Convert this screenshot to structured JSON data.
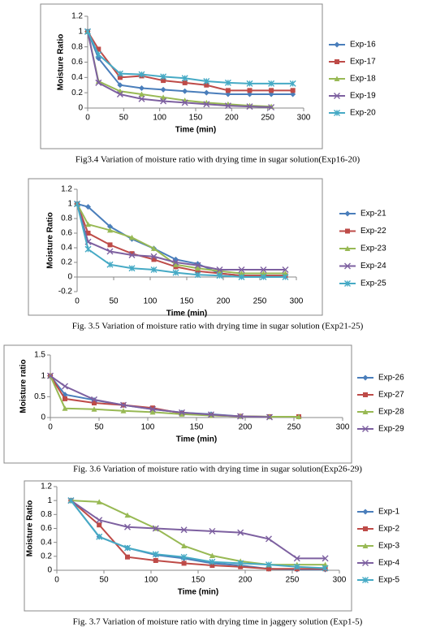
{
  "chart_data": [
    {
      "type": "line",
      "caption": "Fig3.4 Variation of moisture ratio with drying time in sugar solution(Exp16-20)",
      "x_label": "Time (min)",
      "y_label": "Moisture Ratio",
      "xlim": [
        0,
        300
      ],
      "xticks": [
        0,
        50,
        100,
        150,
        200,
        250,
        300
      ],
      "ylim": [
        0,
        1.2
      ],
      "yticks": [
        0,
        0.2,
        0.4,
        0.6,
        0.8,
        1,
        1.2
      ],
      "legend": "right",
      "series": [
        {
          "name": "Exp-16",
          "color": "#4a7ebb",
          "marker": "diamond",
          "x": [
            0,
            15,
            45,
            75,
            105,
            135,
            165,
            195,
            225,
            255,
            285
          ],
          "values": [
            1,
            0.65,
            0.3,
            0.26,
            0.24,
            0.22,
            0.2,
            0.18,
            0.18,
            0.18,
            0.18
          ]
        },
        {
          "name": "Exp-17",
          "color": "#be4b48",
          "marker": "square",
          "x": [
            0,
            15,
            45,
            75,
            105,
            135,
            165,
            195,
            225,
            255,
            285
          ],
          "values": [
            1,
            0.77,
            0.4,
            0.42,
            0.36,
            0.33,
            0.3,
            0.23,
            0.23,
            0.23,
            0.23
          ]
        },
        {
          "name": "Exp-18",
          "color": "#98b954",
          "marker": "triangle",
          "x": [
            0,
            15,
            45,
            75,
            105,
            135,
            165,
            195,
            225,
            255
          ],
          "values": [
            1,
            0.35,
            0.22,
            0.18,
            0.14,
            0.1,
            0.07,
            0.05,
            0.03,
            0.02
          ]
        },
        {
          "name": "Exp-19",
          "color": "#7d60a0",
          "marker": "x",
          "x": [
            0,
            15,
            45,
            75,
            105,
            135,
            165,
            195,
            225,
            255
          ],
          "values": [
            1,
            0.33,
            0.18,
            0.12,
            0.09,
            0.07,
            0.05,
            0.03,
            0.02,
            0.01
          ]
        },
        {
          "name": "Exp-20",
          "color": "#46aac5",
          "marker": "star",
          "x": [
            0,
            15,
            45,
            75,
            105,
            135,
            165,
            195,
            225,
            255,
            285
          ],
          "values": [
            1,
            0.7,
            0.45,
            0.44,
            0.41,
            0.39,
            0.35,
            0.33,
            0.32,
            0.32,
            0.32
          ]
        }
      ]
    },
    {
      "type": "line",
      "caption": "Fig. 3.5 Variation of moisture ratio with drying time in sugar solution (Exp21-25)",
      "x_label": "Time (min)",
      "y_label": "Moisture Ratio",
      "xlim": [
        0,
        300
      ],
      "xticks": [
        0,
        50,
        100,
        150,
        200,
        250,
        300
      ],
      "ylim": [
        -0.2,
        1.2
      ],
      "yticks": [
        -0.2,
        0,
        0.2,
        0.4,
        0.6,
        0.8,
        1,
        1.2
      ],
      "legend": "right",
      "series": [
        {
          "name": "Exp-21",
          "color": "#4a7ebb",
          "marker": "diamond",
          "x": [
            0,
            15,
            45,
            75,
            105,
            135,
            165,
            195,
            225,
            255,
            285
          ],
          "values": [
            1,
            0.96,
            0.69,
            0.52,
            0.39,
            0.24,
            0.18,
            0.05,
            0.02,
            0.02,
            0.02
          ]
        },
        {
          "name": "Exp-22",
          "color": "#be4b48",
          "marker": "square",
          "x": [
            0,
            15,
            45,
            75,
            105,
            135,
            165,
            195,
            225,
            255,
            285
          ],
          "values": [
            1,
            0.6,
            0.44,
            0.32,
            0.24,
            0.14,
            0.08,
            0.05,
            0.02,
            0.02,
            0.02
          ]
        },
        {
          "name": "Exp-23",
          "color": "#98b954",
          "marker": "triangle",
          "x": [
            0,
            15,
            45,
            75,
            105,
            135,
            165,
            195,
            225,
            255,
            285
          ],
          "values": [
            1,
            0.72,
            0.64,
            0.54,
            0.39,
            0.17,
            0.12,
            0.08,
            0.05,
            0.05,
            0.05
          ]
        },
        {
          "name": "Exp-24",
          "color": "#7d60a0",
          "marker": "x",
          "x": [
            0,
            15,
            45,
            75,
            105,
            135,
            165,
            195,
            225,
            255,
            285
          ],
          "values": [
            1,
            0.48,
            0.35,
            0.3,
            0.28,
            0.2,
            0.16,
            0.1,
            0.1,
            0.1,
            0.1
          ]
        },
        {
          "name": "Exp-25",
          "color": "#46aac5",
          "marker": "star",
          "x": [
            0,
            15,
            45,
            75,
            105,
            135,
            165,
            195,
            225,
            255,
            285
          ],
          "values": [
            1,
            0.38,
            0.17,
            0.12,
            0.1,
            0.06,
            0.03,
            0.02,
            0,
            0,
            0
          ]
        }
      ]
    },
    {
      "type": "line",
      "caption": "Fig. 3.6 Variation of moisture ratio with drying time in sugar solution(Exp26-29)",
      "x_label": "Time (min)",
      "y_label": "Moisture ratio",
      "xlim": [
        0,
        300
      ],
      "xticks": [
        0,
        50,
        100,
        150,
        200,
        250,
        300
      ],
      "ylim": [
        0,
        1.5
      ],
      "yticks": [
        0,
        0.5,
        1,
        1.5
      ],
      "legend": "right",
      "series": [
        {
          "name": "Exp-26",
          "color": "#4a7ebb",
          "marker": "diamond",
          "x": [
            0,
            15,
            45,
            75,
            105,
            135,
            165,
            195,
            225,
            255
          ],
          "values": [
            1,
            0.55,
            0.42,
            0.3,
            0.2,
            0.12,
            0.08,
            0.03,
            0.02,
            0.02
          ]
        },
        {
          "name": "Exp-27",
          "color": "#be4b48",
          "marker": "square",
          "x": [
            0,
            15,
            45,
            75,
            105,
            135,
            165,
            195,
            225,
            255
          ],
          "values": [
            1,
            0.45,
            0.35,
            0.3,
            0.23,
            0.1,
            0.05,
            0.03,
            0.02,
            0.02
          ]
        },
        {
          "name": "Exp-28",
          "color": "#98b954",
          "marker": "triangle",
          "x": [
            0,
            15,
            45,
            75,
            105,
            135,
            165,
            195,
            225,
            255
          ],
          "values": [
            1,
            0.22,
            0.2,
            0.16,
            0.13,
            0.08,
            0.05,
            0.03,
            0.02,
            0.02
          ]
        },
        {
          "name": "Exp-29",
          "color": "#7d60a0",
          "marker": "x",
          "x": [
            0,
            15,
            45,
            75,
            105,
            135,
            165,
            195,
            225
          ],
          "values": [
            1,
            0.75,
            0.43,
            0.3,
            0.2,
            0.12,
            0.07,
            0.03,
            0.01
          ]
        }
      ]
    },
    {
      "type": "line",
      "caption": "Fig. 3.7 Variation of moisture ratio with drying time in jaggery solution (Exp1-5)",
      "x_label": "Time (min)",
      "y_label": "Moisture Ratio",
      "xlim": [
        0,
        300
      ],
      "xticks": [
        0,
        50,
        100,
        150,
        200,
        250,
        300
      ],
      "ylim": [
        0,
        1.2
      ],
      "yticks": [
        0,
        0.2,
        0.4,
        0.6,
        0.8,
        1,
        1.2
      ],
      "legend": "right",
      "series": [
        {
          "name": "Exp-1",
          "color": "#4a7ebb",
          "marker": "diamond",
          "x": [
            15,
            45,
            75,
            105,
            135,
            165,
            195,
            225,
            255,
            285
          ],
          "values": [
            1,
            0.48,
            0.32,
            0.22,
            0.17,
            0.1,
            0.07,
            0.02,
            0.01,
            0.01
          ]
        },
        {
          "name": "Exp-2",
          "color": "#be4b48",
          "marker": "square",
          "x": [
            15,
            45,
            75,
            105,
            135,
            165,
            195,
            225,
            255,
            285
          ],
          "values": [
            1,
            0.65,
            0.19,
            0.14,
            0.1,
            0.07,
            0.05,
            0.02,
            0.02,
            0.02
          ]
        },
        {
          "name": "Exp-3",
          "color": "#98b954",
          "marker": "triangle",
          "x": [
            15,
            45,
            75,
            105,
            135,
            165,
            195,
            225,
            255,
            285
          ],
          "values": [
            1,
            0.98,
            0.79,
            0.6,
            0.35,
            0.21,
            0.13,
            0.08,
            0.08,
            0.08
          ]
        },
        {
          "name": "Exp-4",
          "color": "#7d60a0",
          "marker": "x",
          "x": [
            15,
            45,
            75,
            105,
            135,
            165,
            195,
            225,
            255,
            285
          ],
          "values": [
            1,
            0.72,
            0.62,
            0.6,
            0.58,
            0.56,
            0.54,
            0.45,
            0.17,
            0.17
          ]
        },
        {
          "name": "Exp-5",
          "color": "#46aac5",
          "marker": "star",
          "x": [
            15,
            45,
            75,
            105,
            135,
            165,
            195,
            225,
            255,
            285
          ],
          "values": [
            1,
            0.48,
            0.32,
            0.23,
            0.19,
            0.12,
            0.1,
            0.08,
            0.05,
            0.03
          ]
        }
      ]
    }
  ]
}
